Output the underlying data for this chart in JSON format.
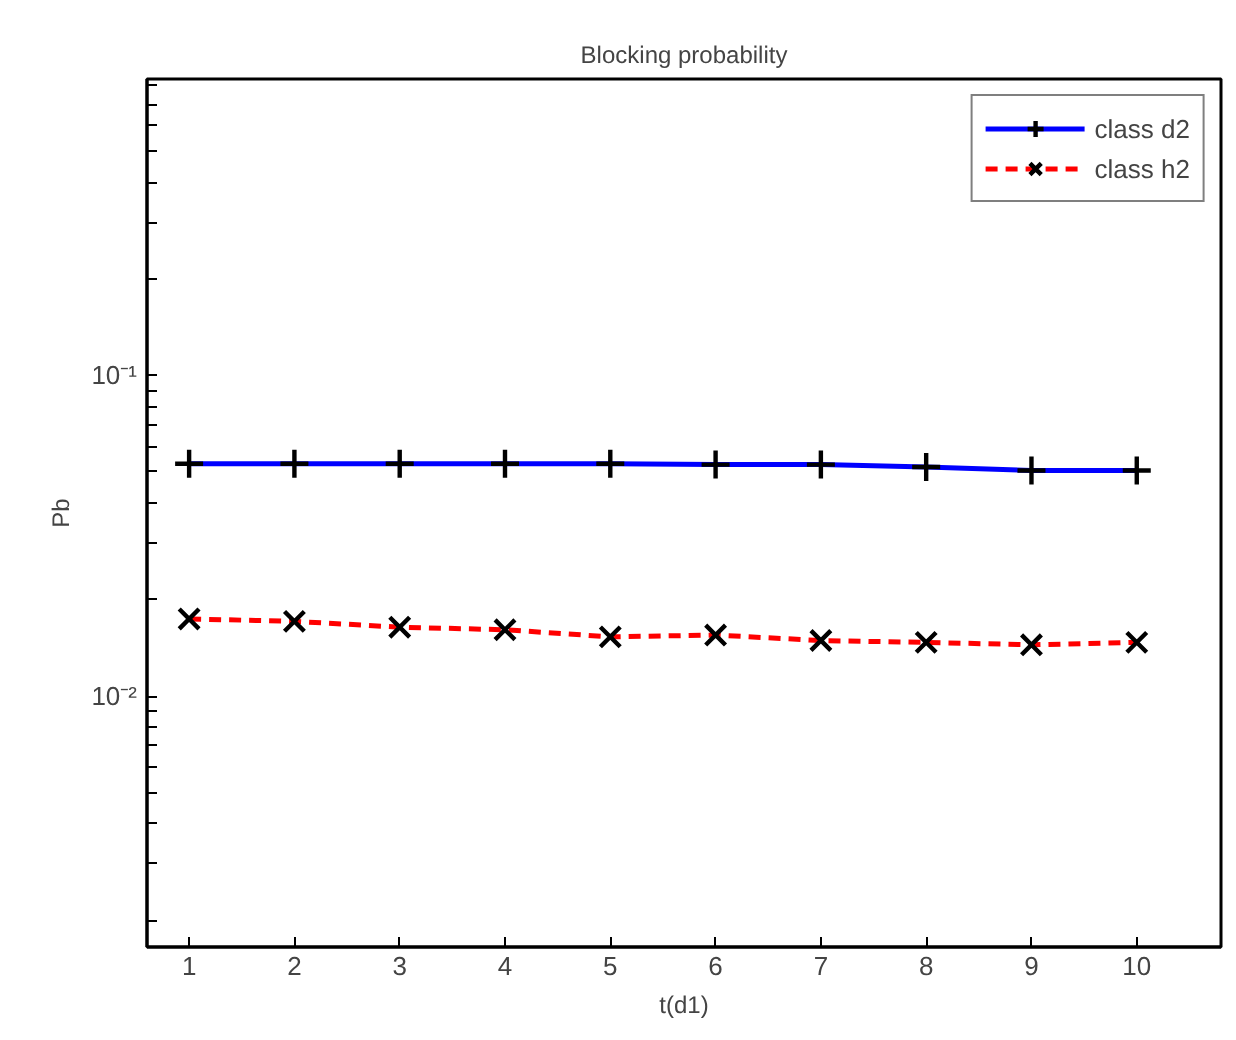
{
  "chart_data": {
    "type": "line",
    "title": "Blocking probability",
    "xlabel": "t(d1)",
    "ylabel": "Pb",
    "log": "y",
    "grid": false,
    "legend": "top right",
    "x": [
      1,
      2,
      3,
      4,
      5,
      6,
      7,
      8,
      9,
      10
    ],
    "xlim": [
      0.6,
      10.8
    ],
    "xticks": [
      1,
      2,
      3,
      4,
      5,
      6,
      7,
      8,
      9,
      10
    ],
    "ylim": [
      0.00165,
      0.84
    ],
    "yticks": [
      {
        "value": 0.002,
        "label": null
      },
      {
        "value": 0.003,
        "label": null
      },
      {
        "value": 0.004,
        "label": null
      },
      {
        "value": 0.005,
        "label": null
      },
      {
        "value": 0.006,
        "label": null
      },
      {
        "value": 0.007,
        "label": null
      },
      {
        "value": 0.008,
        "label": null
      },
      {
        "value": 0.009,
        "label": null
      },
      {
        "value": 0.01,
        "label": "10⁻²"
      },
      {
        "value": 0.02,
        "label": null
      },
      {
        "value": 0.03,
        "label": null
      },
      {
        "value": 0.04,
        "label": null
      },
      {
        "value": 0.05,
        "label": null
      },
      {
        "value": 0.06,
        "label": null
      },
      {
        "value": 0.07,
        "label": null
      },
      {
        "value": 0.08,
        "label": null
      },
      {
        "value": 0.09,
        "label": null
      },
      {
        "value": 0.1,
        "label": "10⁻¹"
      },
      {
        "value": 0.2,
        "label": null
      },
      {
        "value": 0.3,
        "label": null
      },
      {
        "value": 0.4,
        "label": null
      },
      {
        "value": 0.5,
        "label": null
      },
      {
        "value": 0.6,
        "label": null
      },
      {
        "value": 0.7,
        "label": null
      },
      {
        "value": 0.8,
        "label": null
      }
    ],
    "series": [
      {
        "name": "class d2",
        "color": "#0000ff",
        "marker": "plus",
        "line_style": "solid",
        "values": [
          0.053,
          0.053,
          0.053,
          0.053,
          0.053,
          0.0527,
          0.0527,
          0.0518,
          0.0505,
          0.0505
        ]
      },
      {
        "name": "class h2",
        "color": "#ff0000",
        "marker": "cross",
        "line_style": "dashed",
        "values": [
          0.0174,
          0.0171,
          0.0164,
          0.0161,
          0.0153,
          0.0155,
          0.0149,
          0.0147,
          0.01445,
          0.0147
        ]
      }
    ]
  }
}
